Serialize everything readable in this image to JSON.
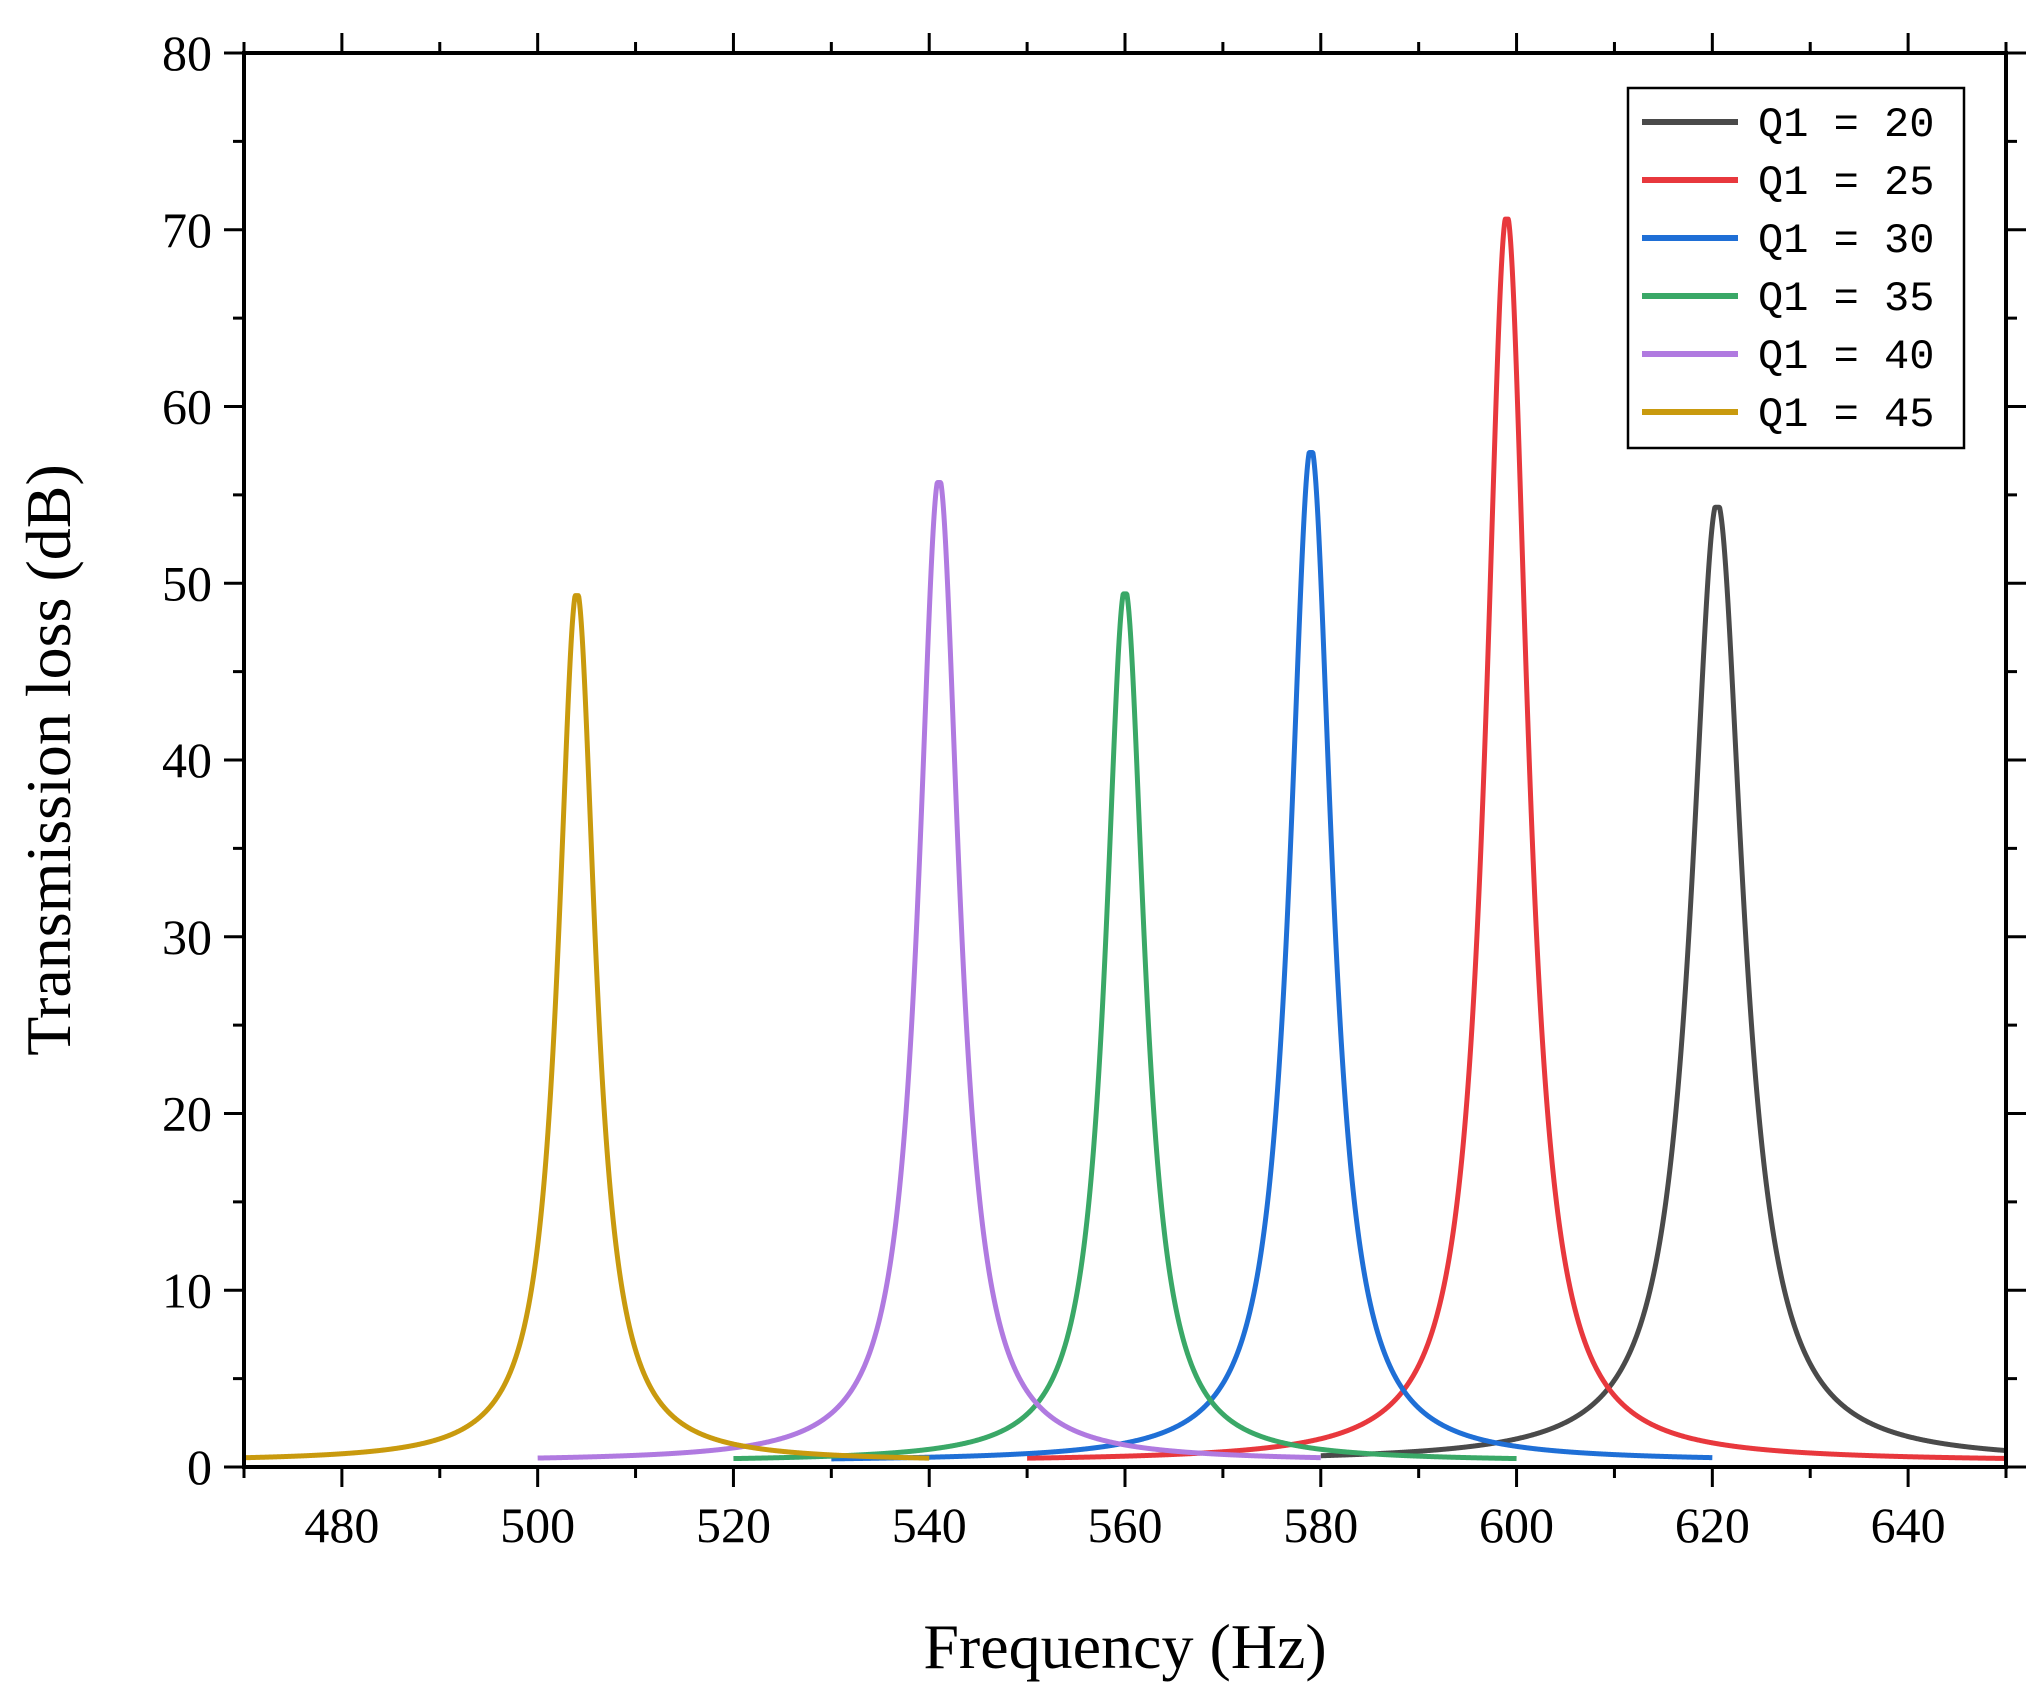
{
  "chart_data": {
    "type": "line",
    "xlabel": "Frequency (Hz)",
    "ylabel": "Transmission loss (dB)",
    "xlim": [
      470,
      650
    ],
    "ylim": [
      0,
      80
    ],
    "x_ticks": [
      480,
      500,
      520,
      540,
      560,
      580,
      600,
      620,
      640
    ],
    "y_ticks": [
      0,
      10,
      20,
      30,
      40,
      50,
      60,
      70,
      80
    ],
    "legend_position": "top-right",
    "series": [
      {
        "name": "Q1 = 20",
        "color": "#4a4a4a",
        "x_range": [
          580,
          650
        ],
        "peak_x": 620.5,
        "peak_y": 54.3,
        "half_width": 3.2
      },
      {
        "name": "Q1 = 25",
        "color": "#e8383d",
        "x_range": [
          550,
          650
        ],
        "peak_x": 599,
        "peak_y": 70.6,
        "half_width": 2.6
      },
      {
        "name": "Q1 = 30",
        "color": "#1f6fd6",
        "x_range": [
          530,
          620
        ],
        "peak_x": 579,
        "peak_y": 57.4,
        "half_width": 2.6
      },
      {
        "name": "Q1 = 35",
        "color": "#3aa867",
        "x_range": [
          520,
          600
        ],
        "peak_x": 560,
        "peak_y": 49.4,
        "half_width": 2.4
      },
      {
        "name": "Q1 = 40",
        "color": "#b07ae0",
        "x_range": [
          500,
          580
        ],
        "peak_x": 541,
        "peak_y": 55.7,
        "half_width": 2.5
      },
      {
        "name": "Q1 = 45",
        "color": "#c99a0e",
        "x_range": [
          470,
          540
        ],
        "peak_x": 504,
        "peak_y": 49.3,
        "half_width": 2.3
      }
    ]
  }
}
